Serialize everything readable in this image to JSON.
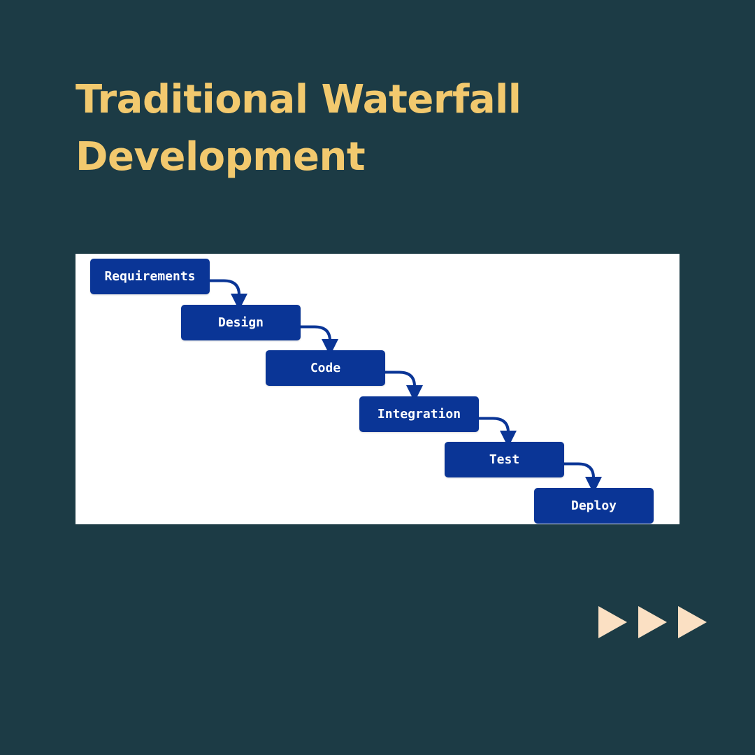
{
  "title": {
    "line1": "Traditional Waterfall",
    "line2": "Development"
  },
  "diagram": {
    "steps": [
      {
        "label": "Requirements"
      },
      {
        "label": "Design"
      },
      {
        "label": "Code"
      },
      {
        "label": "Integration"
      },
      {
        "label": "Test"
      },
      {
        "label": "Deploy"
      }
    ]
  },
  "colors": {
    "background": "#1c3b45",
    "title": "#f2c96e",
    "step_fill": "#0a3596",
    "arrow": "#0a3596",
    "next_icon": "#fbe0c3"
  },
  "navigation": {
    "next_icon": "triple-play-arrow-icon"
  }
}
